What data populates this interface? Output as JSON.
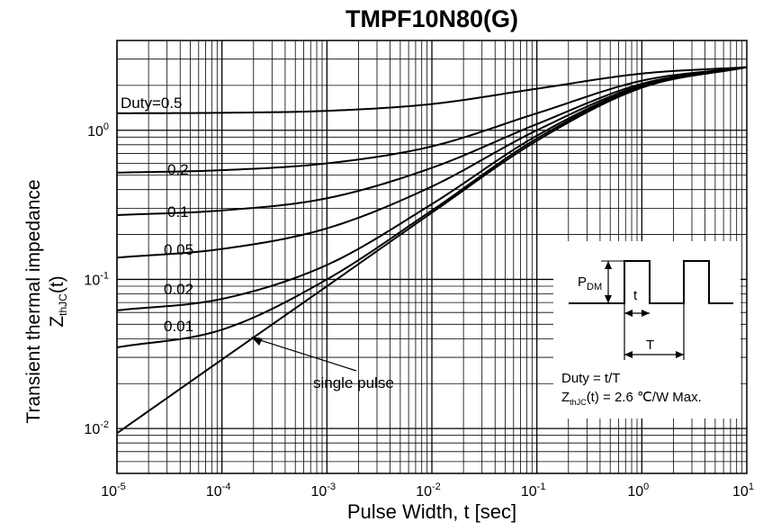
{
  "chart_data": {
    "type": "line",
    "title": "TMPF10N80(G)",
    "xlabel": "Pulse Width, t [sec]",
    "ylabel": {
      "line1": "Transient thermal impedance",
      "z": "Z",
      "sub": "thJC",
      "suffix": "(t)"
    },
    "x_scale": "log",
    "y_scale": "log",
    "xlim": [
      1e-05,
      10
    ],
    "ylim": [
      0.005,
      4
    ],
    "grid": true,
    "x_ticks": [
      {
        "base": "10",
        "exp": "-5"
      },
      {
        "base": "10",
        "exp": "-4"
      },
      {
        "base": "10",
        "exp": "-3"
      },
      {
        "base": "10",
        "exp": "-2"
      },
      {
        "base": "10",
        "exp": "-1"
      },
      {
        "base": "10",
        "exp": "0"
      },
      {
        "base": "10",
        "exp": "1"
      }
    ],
    "y_ticks": [
      {
        "base": "10",
        "exp": "-2"
      },
      {
        "base": "10",
        "exp": "-1"
      },
      {
        "base": "10",
        "exp": "0"
      }
    ],
    "series": [
      {
        "name": "Duty=0.5",
        "x": [
          1e-05,
          0.0001,
          0.001,
          0.01,
          0.1,
          1,
          10
        ],
        "y": [
          1.3,
          1.31,
          1.35,
          1.5,
          1.9,
          2.4,
          2.65
        ]
      },
      {
        "name": "0.2",
        "x": [
          1e-05,
          0.0001,
          0.001,
          0.01,
          0.1,
          1,
          10
        ],
        "y": [
          0.52,
          0.54,
          0.6,
          0.78,
          1.3,
          2.15,
          2.65
        ]
      },
      {
        "name": "0.1",
        "x": [
          1e-05,
          0.0001,
          0.001,
          0.01,
          0.1,
          1,
          10
        ],
        "y": [
          0.27,
          0.29,
          0.35,
          0.56,
          1.1,
          2.05,
          2.65
        ]
      },
      {
        "name": "0.05",
        "x": [
          1e-05,
          0.0001,
          0.001,
          0.01,
          0.1,
          1,
          10
        ],
        "y": [
          0.14,
          0.16,
          0.22,
          0.42,
          1.0,
          2.0,
          2.65
        ]
      },
      {
        "name": "0.02",
        "x": [
          1e-05,
          0.0001,
          0.001,
          0.01,
          0.1,
          1,
          10
        ],
        "y": [
          0.062,
          0.074,
          0.125,
          0.32,
          0.92,
          1.97,
          2.65
        ]
      },
      {
        "name": "0.01",
        "x": [
          1e-05,
          0.0001,
          0.001,
          0.01,
          0.1,
          1,
          10
        ],
        "y": [
          0.035,
          0.046,
          0.1,
          0.29,
          0.88,
          1.95,
          2.65
        ]
      },
      {
        "name": "single pulse",
        "x": [
          1e-05,
          0.0001,
          0.001,
          0.01,
          0.1,
          1,
          10
        ],
        "y": [
          0.0093,
          0.029,
          0.09,
          0.28,
          0.85,
          1.93,
          2.65
        ]
      }
    ],
    "annotations": {
      "duty_labels": [
        "Duty=0.5",
        "0.2",
        "0.1",
        "0.05",
        "0.02",
        "0.01"
      ],
      "single_pulse_label": "single pulse",
      "inset": {
        "pdm": {
          "main": "P",
          "sub": "DM"
        },
        "t_label": "t",
        "T_label": "T",
        "duty_formula": "Duty = t/T",
        "z_max": {
          "z": "Z",
          "sub": "thJC",
          "rest": "(t) = 2.6 ℃/W Max."
        }
      }
    }
  }
}
